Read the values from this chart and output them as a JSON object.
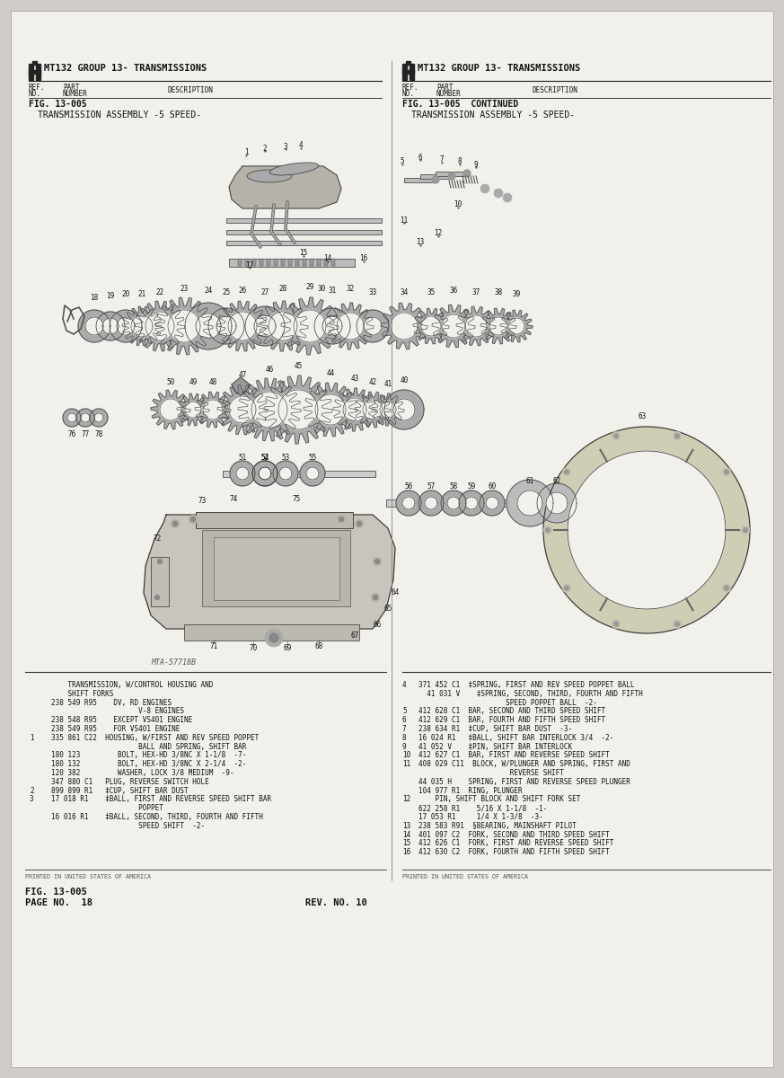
{
  "bg_color": "#d0cdc8",
  "page_bg": "#f2f0eb",
  "inner_bg": "#eeece6",
  "line_color": "#1a1a1a",
  "text_color": "#111111",
  "gray_text": "#444444",
  "header_left_title": "MT132 GROUP 13- TRANSMISSIONS",
  "header_right_title": "MT132 GROUP 13- TRANSMISSIONS",
  "fig_left": "FIG. 13-005",
  "fig_right": "FIG. 13-005  CONTINUED",
  "assembly_left": "TRANSMISSION ASSEMBLY -5 SPEED-",
  "assembly_right": "TRANSMISSION ASSEMBLY -5 SPEED-",
  "diagram_label": "MTA-57718B",
  "left_parts_raw": [
    [
      "",
      "    TRANSMISSION, W/CONTROL HOUSING AND"
    ],
    [
      "",
      "    SHIFT FORKS"
    ],
    [
      "",
      "238 549 R95    DV, RD ENGINES"
    ],
    [
      "",
      "                     V-8 ENGINES"
    ],
    [
      "",
      "238 548 R95    EXCEPT VS401 ENGINE"
    ],
    [
      "",
      "238 549 R95    FOR VS401 ENGINE"
    ],
    [
      "1",
      "335 861 C22  HOUSING, W/FIRST AND REV SPEED POPPET"
    ],
    [
      "",
      "                     BALL AND SPRING, SHIFT BAR"
    ],
    [
      "",
      "180 123         BOLT, HEX-HD 3/8NC X 1-1/8  -7-"
    ],
    [
      "",
      "180 132         BOLT, HEX-HD 3/8NC X 2-1/4  -2-"
    ],
    [
      "",
      "120 382         WASHER, LOCK 3/8 MEDIUM  -9-"
    ],
    [
      "",
      "347 880 C1   PLUG, REVERSE SWITCH HOLE"
    ],
    [
      "2",
      "899 899 R1   ‡CUP, SHIFT BAR DUST"
    ],
    [
      "3",
      "17 018 R1    ‡BALL, FIRST AND REVERSE SPEED SHIFT BAR"
    ],
    [
      "",
      "                     POPPET"
    ],
    [
      "",
      "16 016 R1    ‡BALL, SECOND, THIRD, FOURTH AND FIFTH"
    ],
    [
      "",
      "                     SPEED SHIFT  -2-"
    ]
  ],
  "right_parts_raw": [
    [
      "4",
      "371 452 C1  ‡SPRING, FIRST AND REV SPEED POPPET BALL"
    ],
    [
      "",
      "  41 031 V    ‡SPRING, SECOND, THIRD, FOURTH AND FIFTH"
    ],
    [
      "",
      "                     SPEED POPPET BALL  -2-"
    ],
    [
      "5",
      "412 628 C1  BAR, SECOND AND THIRD SPEED SHIFT"
    ],
    [
      "6",
      "412 629 C1  BAR, FOURTH AND FIFTH SPEED SHIFT"
    ],
    [
      "7",
      "238 634 R1  ‡CUP, SHIFT BAR DUST  -3-"
    ],
    [
      "8",
      "16 024 R1   ‡BALL, SHIFT BAR INTERLOCK 3/4  -2-"
    ],
    [
      "9",
      "41 052 V    ‡PIN, SHIFT BAR INTERLOCK"
    ],
    [
      "10",
      "412 627 C1  BAR, FIRST AND REVERSE SPEED SHIFT"
    ],
    [
      "11",
      "408 029 C11  BLOCK, W/PLUNGER AND SPRING, FIRST AND"
    ],
    [
      "",
      "                      REVERSE SHIFT"
    ],
    [
      "",
      "44 035 H    SPRING, FIRST AND REVERSE SPEED PLUNGER"
    ],
    [
      "",
      "104 977 R1  RING, PLUNGER"
    ],
    [
      "12",
      "    PIN, SHIFT BLOCK AND SHIFT FORK SET"
    ],
    [
      "",
      "622 258 R1    5/16 X 1-1/8  -1-"
    ],
    [
      "",
      "17 053 R1     1/4 X 1-3/8  -3-"
    ],
    [
      "13",
      "238 583 R91  §BEARING, MAINSHAFT PILOT"
    ],
    [
      "14",
      "401 097 C2  FORK, SECOND AND THIRD SPEED SHIFT"
    ],
    [
      "15",
      "412 626 C1  FORK, FIRST AND REVERSE SPEED SHIFT"
    ],
    [
      "16",
      "412 630 C2  FORK, FOURTH AND FIFTH SPEED SHIFT"
    ]
  ],
  "footer_left": "PRINTED IN UNITED STATES OF AMERICA",
  "footer_right": "PRINTED IN UNITED STATES OF AMERICA",
  "page_fig": "FIG. 13-005",
  "page_no": "PAGE NO.  18",
  "rev_no": "REV. NO. 10"
}
